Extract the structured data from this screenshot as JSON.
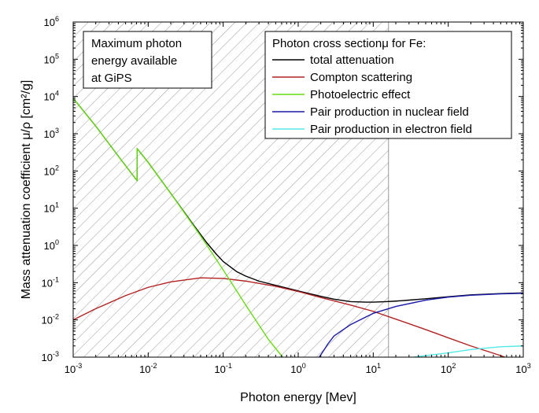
{
  "chart_data": {
    "type": "line",
    "title": "",
    "xlabel": "Photon energy [Mev]",
    "ylabel": "Mass attenuation coefficient μ/ρ [cm²/g]",
    "xscale": "log",
    "yscale": "log",
    "xlim": [
      0.001,
      1000
    ],
    "ylim": [
      0.001,
      1000000
    ],
    "x_ticks": [
      {
        "value": 0.001,
        "base": "10",
        "exp": "-3"
      },
      {
        "value": 0.01,
        "base": "10",
        "exp": "-2"
      },
      {
        "value": 0.1,
        "base": "10",
        "exp": "-1"
      },
      {
        "value": 1,
        "base": "10",
        "exp": "0"
      },
      {
        "value": 10,
        "base": "10",
        "exp": "1"
      },
      {
        "value": 100,
        "base": "10",
        "exp": "2"
      },
      {
        "value": 1000,
        "base": "10",
        "exp": "3"
      }
    ],
    "y_ticks": [
      {
        "value": 0.001,
        "base": "10",
        "exp": "-3"
      },
      {
        "value": 0.01,
        "base": "10",
        "exp": "-2"
      },
      {
        "value": 0.1,
        "base": "10",
        "exp": "-1"
      },
      {
        "value": 1,
        "base": "10",
        "exp": "0"
      },
      {
        "value": 10,
        "base": "10",
        "exp": "1"
      },
      {
        "value": 100,
        "base": "10",
        "exp": "2"
      },
      {
        "value": 1000,
        "base": "10",
        "exp": "3"
      },
      {
        "value": 10000,
        "base": "10",
        "exp": "4"
      },
      {
        "value": 100000,
        "base": "10",
        "exp": "5"
      },
      {
        "value": 1000000,
        "base": "10",
        "exp": "6"
      }
    ],
    "shaded_region": {
      "x_min": 0.001,
      "x_max": 16,
      "pattern": "diagonal-hatch",
      "color": "#999999",
      "label_lines": [
        "Maximum photon",
        "energy available",
        "at GiPS"
      ]
    },
    "legend": {
      "title": "Photon cross sectionμ for Fe:",
      "position": "top-right"
    },
    "series": [
      {
        "name": "total attenuation",
        "color": "#000000",
        "x": [
          0.001,
          0.002,
          0.004,
          0.0071,
          0.00711,
          0.01,
          0.02,
          0.04,
          0.06,
          0.08,
          0.1,
          0.15,
          0.2,
          0.3,
          0.5,
          1,
          2,
          3,
          5,
          8,
          10,
          15,
          20,
          30,
          50,
          100,
          200,
          500,
          1000
        ],
        "values": [
          9000,
          1600,
          250,
          55,
          400,
          170,
          25,
          3.6,
          1.2,
          0.6,
          0.37,
          0.2,
          0.15,
          0.11,
          0.085,
          0.06,
          0.043,
          0.036,
          0.031,
          0.03,
          0.03,
          0.031,
          0.032,
          0.034,
          0.037,
          0.042,
          0.047,
          0.051,
          0.053
        ]
      },
      {
        "name": "Compton scattering",
        "color": "#b22222",
        "x": [
          0.001,
          0.002,
          0.005,
          0.01,
          0.02,
          0.05,
          0.1,
          0.2,
          0.5,
          1,
          2,
          5,
          10,
          20,
          50,
          100,
          200,
          500,
          1000
        ],
        "values": [
          0.01,
          0.02,
          0.045,
          0.075,
          0.105,
          0.135,
          0.13,
          0.11,
          0.08,
          0.058,
          0.04,
          0.025,
          0.017,
          0.0105,
          0.0055,
          0.0033,
          0.002,
          0.0011,
          0.00065
        ]
      },
      {
        "name": "Photoelectric effect",
        "color": "#66dd11",
        "x": [
          0.001,
          0.002,
          0.004,
          0.0071,
          0.00711,
          0.01,
          0.02,
          0.05,
          0.1,
          0.2,
          0.4,
          0.62
        ],
        "values": [
          9000,
          1600,
          250,
          55,
          400,
          170,
          25,
          1.8,
          0.22,
          0.025,
          0.003,
          0.001
        ]
      },
      {
        "name": "Pair production in nuclear field",
        "color": "#1a1aaa",
        "x": [
          1.9,
          2,
          2.5,
          3,
          5,
          8,
          10,
          20,
          50,
          100,
          200,
          500,
          1000
        ],
        "values": [
          0.001,
          0.00115,
          0.0023,
          0.0037,
          0.0075,
          0.012,
          0.015,
          0.023,
          0.034,
          0.041,
          0.046,
          0.05,
          0.052
        ]
      },
      {
        "name": "Pair production in electron field",
        "color": "#55e8e8",
        "x": [
          35,
          50,
          100,
          200,
          500,
          1000
        ],
        "values": [
          0.001,
          0.0011,
          0.0013,
          0.0016,
          0.0019,
          0.002
        ]
      }
    ]
  }
}
